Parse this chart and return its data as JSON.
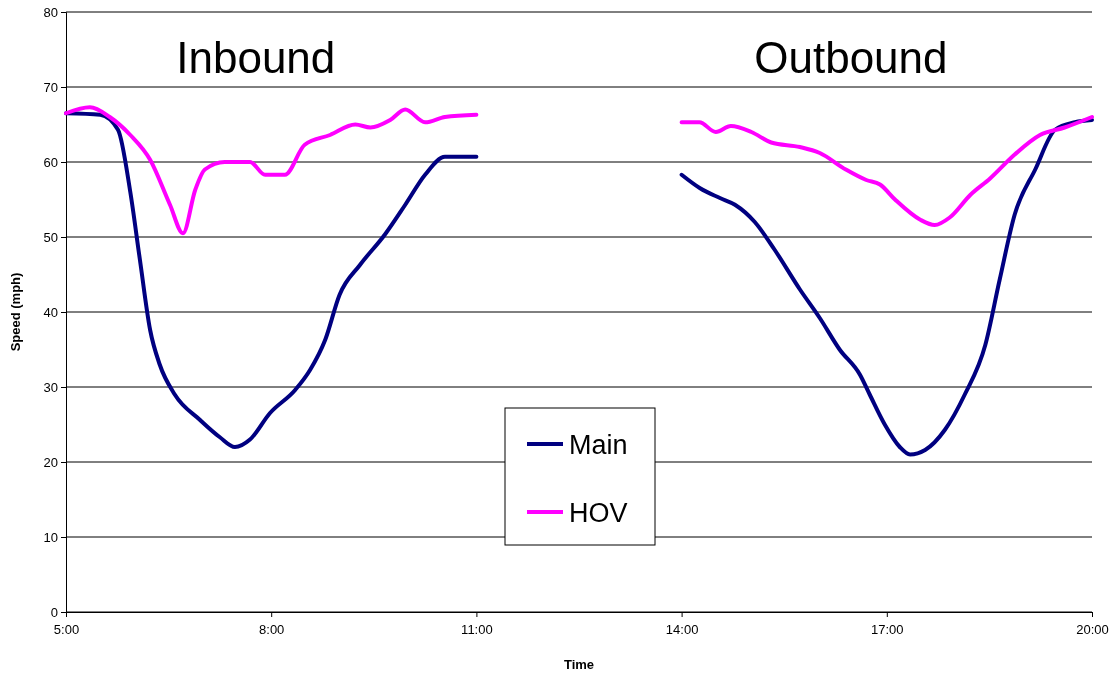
{
  "chart_data": {
    "type": "line",
    "xlabel": "Time",
    "ylabel": "Speed (mph)",
    "annotations": [
      "Inbound",
      "Outbound"
    ],
    "xlim": [
      5,
      20
    ],
    "xticks": [
      {
        "value": 5,
        "label": "5:00"
      },
      {
        "value": 8,
        "label": "8:00"
      },
      {
        "value": 11,
        "label": "11:00"
      },
      {
        "value": 14,
        "label": "14:00"
      },
      {
        "value": 17,
        "label": "17:00"
      },
      {
        "value": 20,
        "label": "20:00"
      }
    ],
    "ylim": [
      0,
      80
    ],
    "yticks": [
      0,
      10,
      20,
      30,
      40,
      50,
      60,
      70,
      80
    ],
    "grid": "y",
    "legend": "bottom",
    "series": [
      {
        "name": "Main",
        "color": "#000080",
        "x": [
          5,
          5.5,
          5.76,
          5.94,
          6.08,
          6.23,
          6.37,
          6.59,
          6.96,
          7.25,
          7.47,
          7.69,
          7.98,
          8.35,
          8.57,
          8.79,
          9.0,
          9.3,
          9.66,
          9.96,
          10.25,
          10.54,
          11,
          12.5,
          14,
          14.27,
          14.56,
          14.78,
          15.07,
          15.36,
          15.73,
          16.02,
          16.31,
          16.61,
          16.75,
          16.97,
          17.19,
          17.34,
          17.56,
          17.85,
          18.14,
          18.44,
          18.65,
          18.87,
          19.17,
          19.46,
          19.75,
          20
        ],
        "values": [
          66.5,
          66.3,
          64.3,
          56,
          47,
          37.6,
          33,
          29,
          25.6,
          23.3,
          22,
          23,
          26.5,
          29.6,
          32.3,
          36.3,
          42.3,
          46.3,
          50.3,
          54.3,
          58.3,
          60.7,
          60.7,
          null,
          58.3,
          56.5,
          55.2,
          54.3,
          52,
          48.3,
          43,
          39.2,
          35,
          31.6,
          29,
          25,
          22,
          21,
          21.6,
          24.3,
          29,
          35.6,
          44.3,
          53,
          59,
          64.3,
          65.3,
          65.6
        ]
      },
      {
        "name": "HOV",
        "color": "#ff00ff",
        "x": [
          5,
          5.35,
          5.64,
          5.94,
          6.23,
          6.52,
          6.71,
          6.89,
          7.03,
          7.32,
          7.69,
          7.91,
          8.2,
          8.49,
          8.86,
          9.23,
          9.45,
          9.74,
          9.96,
          10.25,
          10.54,
          11,
          12.5,
          14,
          14.26,
          14.5,
          14.72,
          15.02,
          15.31,
          15.73,
          16.02,
          16.4,
          16.7,
          16.9,
          17.12,
          17.49,
          17.7,
          17.92,
          18.22,
          18.51,
          18.87,
          19.24,
          19.6,
          20
        ],
        "values": [
          66.5,
          67.3,
          66,
          63.6,
          60.3,
          54.3,
          50.5,
          56.3,
          59,
          60,
          60,
          58.3,
          58.3,
          62.3,
          63.6,
          65,
          64.6,
          65.6,
          67,
          65.3,
          66,
          66.3,
          null,
          65.3,
          65.3,
          64,
          64.8,
          64,
          62.6,
          62,
          61.2,
          59,
          57.6,
          57,
          55,
          52.3,
          51.6,
          52.6,
          55.6,
          57.8,
          61,
          63.6,
          64.6,
          66
        ]
      }
    ]
  }
}
